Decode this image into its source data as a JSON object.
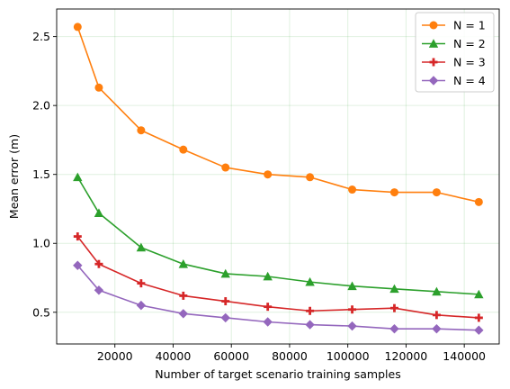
{
  "chart_data": {
    "type": "line",
    "xlabel": "Number of target scenario training samples",
    "ylabel": "Mean error (m)",
    "xlim": [
      0,
      152000
    ],
    "ylim": [
      0.27,
      2.7
    ],
    "x_ticks": [
      20000,
      40000,
      60000,
      80000,
      100000,
      120000,
      140000
    ],
    "x_tick_labels": [
      "20000",
      "40000",
      "60000",
      "80000",
      "100000",
      "120000",
      "140000"
    ],
    "y_ticks": [
      0.5,
      1.0,
      1.5,
      2.0,
      2.5
    ],
    "y_tick_labels": [
      "0.5",
      "1.0",
      "1.5",
      "2.0",
      "2.5"
    ],
    "grid": true,
    "legend_position": "top-right",
    "x": [
      7200,
      14500,
      29000,
      43500,
      58000,
      72500,
      87000,
      101500,
      116000,
      130500,
      145000
    ],
    "series": [
      {
        "name": "N = 1",
        "color": "#ff7f0e",
        "marker": "circle",
        "values": [
          2.57,
          2.13,
          1.82,
          1.68,
          1.55,
          1.5,
          1.48,
          1.39,
          1.37,
          1.37,
          1.3
        ]
      },
      {
        "name": "N = 2",
        "color": "#2ca02c",
        "marker": "triangle",
        "values": [
          1.48,
          1.22,
          0.97,
          0.85,
          0.78,
          0.76,
          0.72,
          0.69,
          0.67,
          0.65,
          0.63
        ]
      },
      {
        "name": "N = 3",
        "color": "#d62728",
        "marker": "plus",
        "values": [
          1.05,
          0.85,
          0.71,
          0.62,
          0.58,
          0.54,
          0.51,
          0.52,
          0.53,
          0.48,
          0.46
        ]
      },
      {
        "name": "N = 4",
        "color": "#9467bd",
        "marker": "diamond",
        "values": [
          0.84,
          0.66,
          0.55,
          0.49,
          0.46,
          0.43,
          0.41,
          0.4,
          0.38,
          0.38,
          0.37
        ]
      }
    ]
  }
}
